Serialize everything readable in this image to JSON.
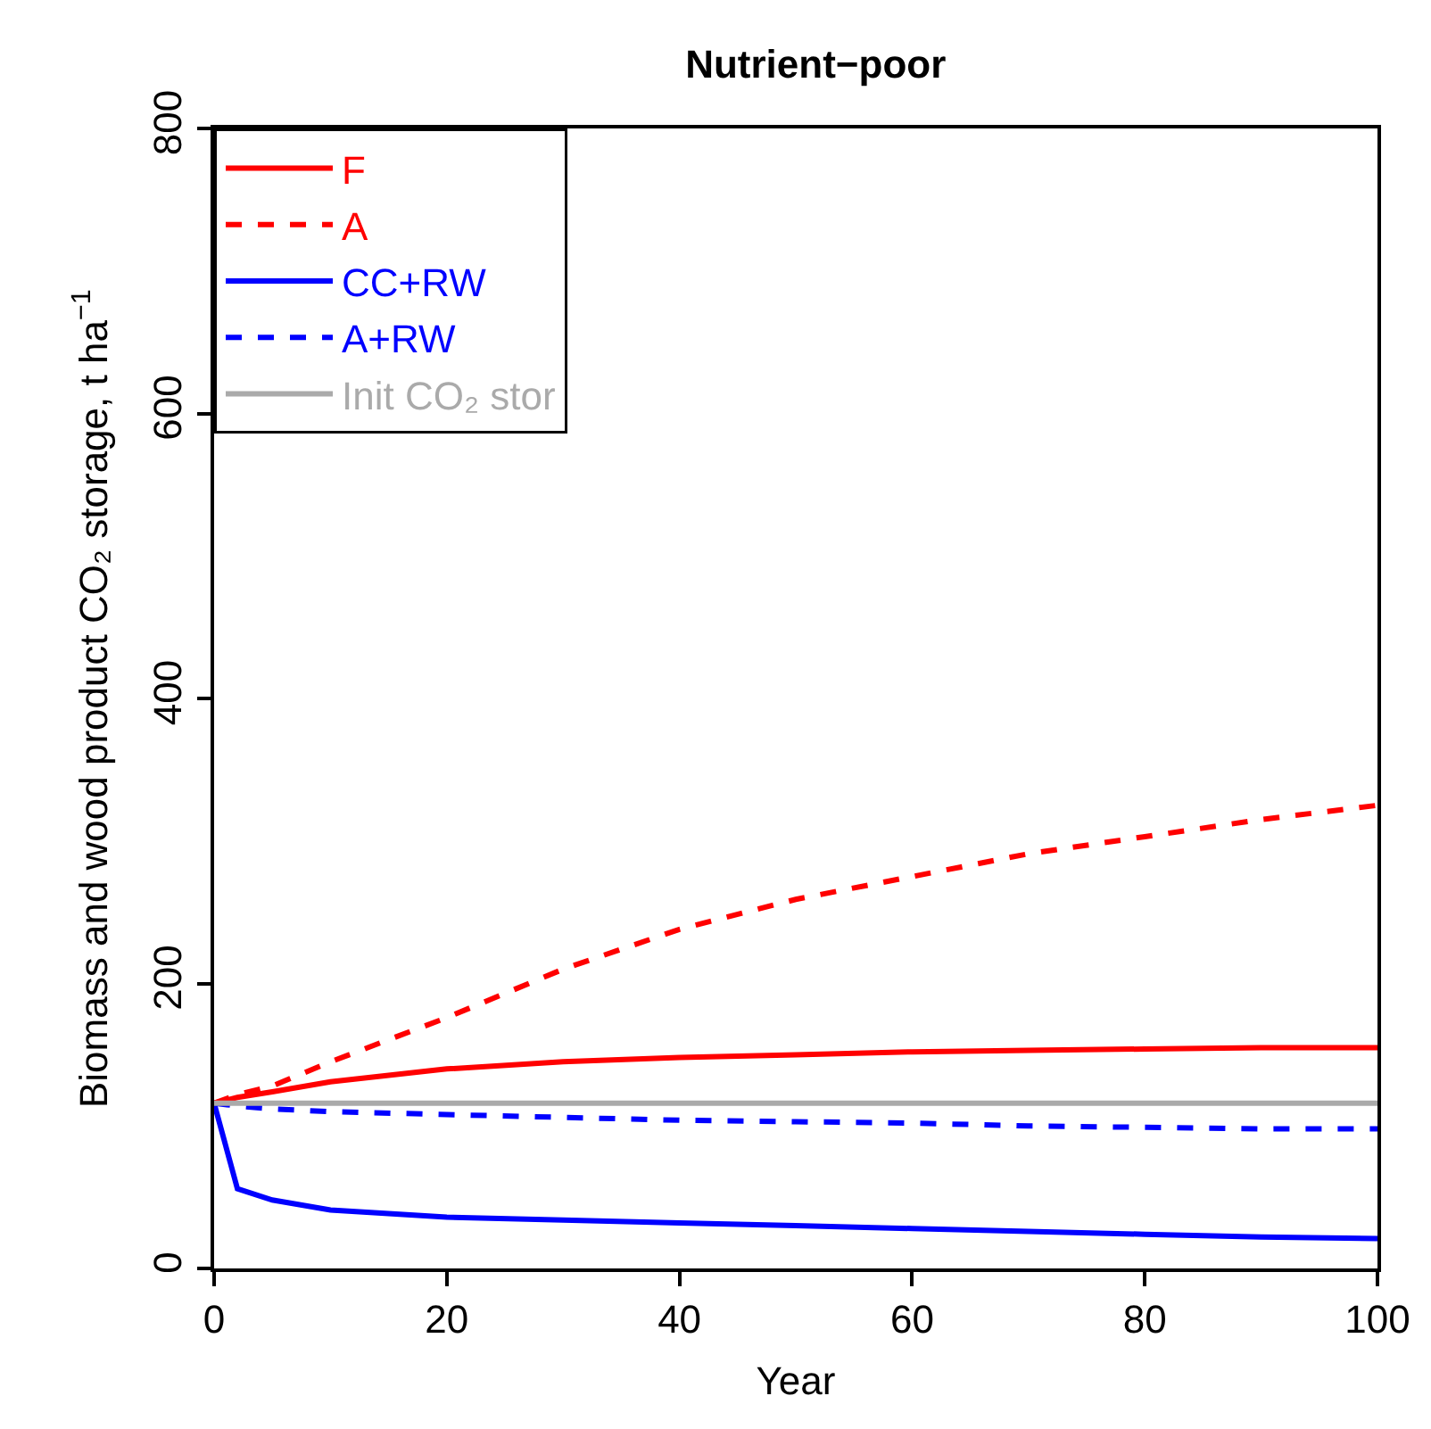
{
  "chart_data": {
    "type": "line",
    "title": "Nutrient−poor",
    "xlabel": "Year",
    "ylabel": "Biomass and wood product CO₂ storage, t ha$^{−1}$",
    "xlim": [
      0,
      100
    ],
    "xticks": [
      0,
      20,
      40,
      60,
      80,
      100
    ],
    "ylim": [
      0,
      800
    ],
    "yticks": [
      0,
      200,
      400,
      600,
      800
    ],
    "legend": "top left",
    "marker": "none",
    "x": [
      0,
      2,
      5,
      10,
      20,
      30,
      40,
      50,
      60,
      70,
      80,
      90,
      100
    ],
    "series": [
      {
        "name": "F",
        "color": "#ff0000",
        "line_style": "solid",
        "values": [
          116,
          120,
          124,
          131,
          140,
          145,
          148,
          150,
          152,
          153,
          154,
          155,
          155
        ]
      },
      {
        "name": "A",
        "color": "#ff0000",
        "line_style": "dashed",
        "values": [
          116,
          122,
          128,
          145,
          176,
          210,
          238,
          259,
          275,
          291,
          303,
          315,
          325
        ]
      },
      {
        "name": "CC+RW",
        "color": "#0000ff",
        "line_style": "solid",
        "values": [
          116,
          56,
          48,
          41,
          36,
          34,
          32,
          30,
          28,
          26,
          24,
          22,
          21
        ]
      },
      {
        "name": "A+RW",
        "color": "#0000ff",
        "line_style": "dashed",
        "values": [
          116,
          114,
          112,
          110,
          108,
          106,
          104,
          103,
          102,
          100,
          99,
          98,
          98
        ]
      },
      {
        "name": "Init CO₂ stor",
        "color": "#aaaaaa",
        "line_style": "solid",
        "values": [
          116,
          116,
          116,
          116,
          116,
          116,
          116,
          116,
          116,
          116,
          116,
          116,
          116
        ]
      }
    ]
  }
}
